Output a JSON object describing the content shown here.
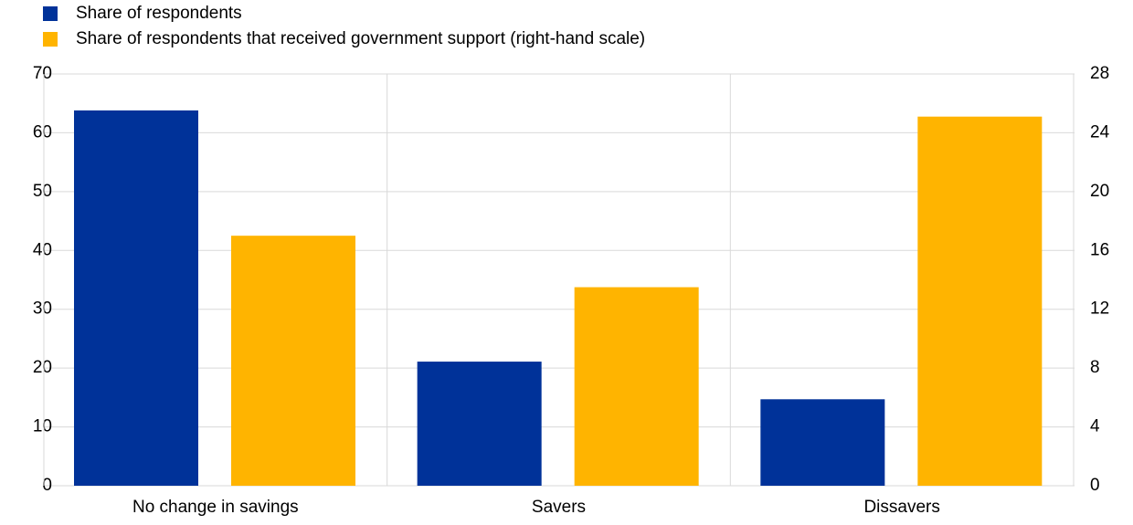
{
  "chart_data": {
    "type": "bar",
    "categories": [
      "No change in savings",
      "Savers",
      "Dissavers"
    ],
    "series": [
      {
        "name": "Share of respondents",
        "color": "#003299",
        "values": [
          63.8,
          21.1,
          14.7
        ]
      },
      {
        "name": "Share of respondents that received government support (right-hand scale)",
        "color": "#ffb400",
        "axis": "y2",
        "values": [
          17.0,
          13.5,
          25.1
        ]
      }
    ],
    "ylim": [
      0,
      70
    ],
    "yticks": [
      0,
      10,
      20,
      30,
      40,
      50,
      60,
      70
    ],
    "y2lim": [
      0,
      28
    ],
    "y2ticks": [
      0,
      4,
      8,
      12,
      16,
      20,
      24,
      28
    ],
    "grid": true,
    "legend": "top-left"
  }
}
